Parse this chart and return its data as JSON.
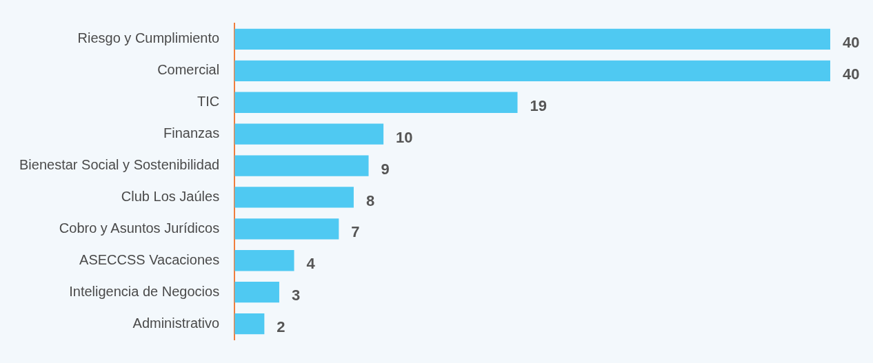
{
  "chart_data": {
    "type": "bar",
    "orientation": "horizontal",
    "categories": [
      "Riesgo y Cumplimiento",
      "Comercial",
      "TIC",
      "Finanzas",
      "Bienestar Social y Sostenibilidad",
      "Club Los Jaúles",
      "Cobro y Asuntos Jurídicos",
      "ASECCSS Vacaciones",
      "Inteligencia de Negocios",
      "Administrativo"
    ],
    "values": [
      40,
      40,
      19,
      10,
      9,
      8,
      7,
      4,
      3,
      2
    ],
    "color": "#4fc9f2",
    "xlim": [
      0,
      40
    ],
    "data_labels": true,
    "tick_labels": "y"
  }
}
